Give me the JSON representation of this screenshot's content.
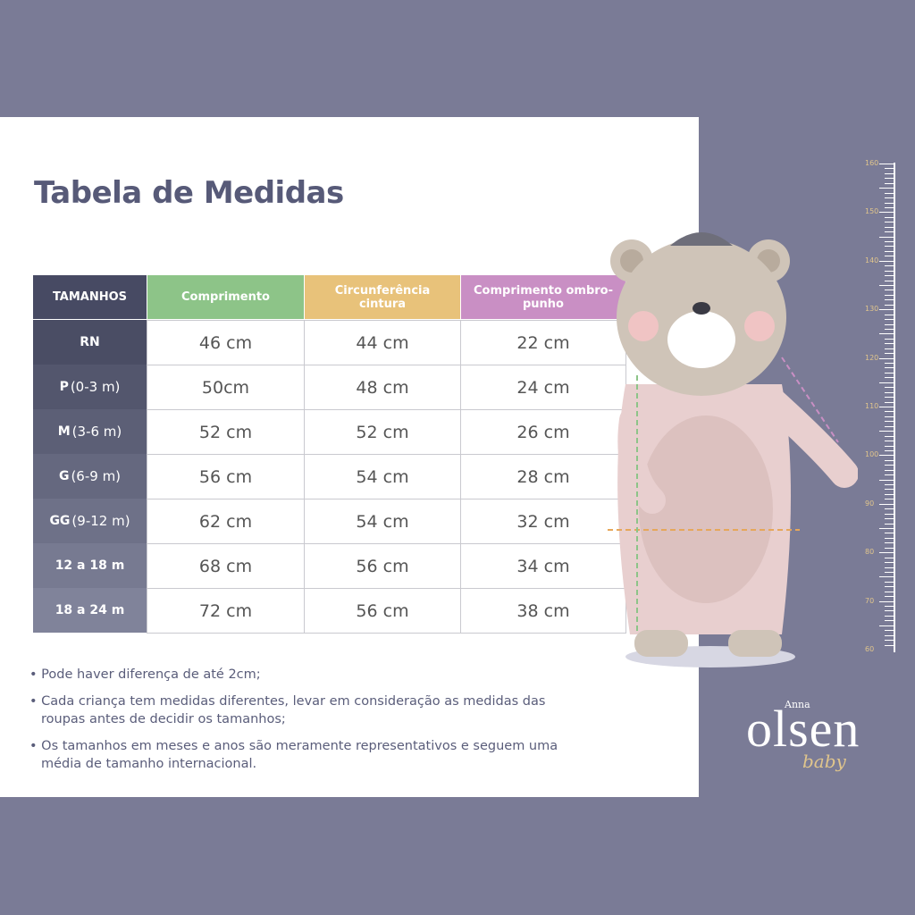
{
  "title": "Tabela de Medidas",
  "table": {
    "headers": [
      "TAMANHOS",
      "Comprimento",
      "Circunferência cintura",
      "Comprimento ombro-punho"
    ],
    "rows": [
      {
        "size": "RN",
        "values": [
          "46 cm",
          "44 cm",
          "22 cm"
        ]
      },
      {
        "size": "P",
        "range": "(0-3 m)",
        "values": [
          "50cm",
          "48 cm",
          "24 cm"
        ]
      },
      {
        "size": "M",
        "range": "(3-6 m)",
        "values": [
          "52 cm",
          "52 cm",
          "26 cm"
        ]
      },
      {
        "size": "G",
        "range": "(6-9 m)",
        "values": [
          "56 cm",
          "54 cm",
          "28 cm"
        ]
      },
      {
        "size": "GG",
        "range": "(9-12 m)",
        "values": [
          "62 cm",
          "54 cm",
          "32 cm"
        ]
      },
      {
        "size": "12 a 18 m",
        "values": [
          "68 cm",
          "56 cm",
          "34 cm"
        ]
      },
      {
        "size": "18 a 24 m",
        "values": [
          "72 cm",
          "56 cm",
          "38 cm"
        ]
      }
    ]
  },
  "notes": [
    "Pode haver diferença de até 2cm;",
    "Cada criança tem medidas diferentes, levar em consideração as medidas das roupas antes de decidir os tamanhos;",
    "Os tamanhos em meses e anos são meramente representativos e seguem uma média de tamanho internacional."
  ],
  "ruler": {
    "labels": [
      160,
      150,
      140,
      130,
      120,
      110,
      100,
      90,
      80,
      70,
      60
    ]
  },
  "logo": {
    "top": "Anna",
    "name": "olsen",
    "script": "baby"
  }
}
